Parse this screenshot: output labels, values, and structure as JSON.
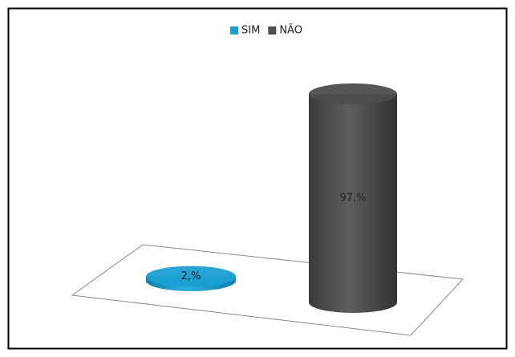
{
  "chart_data": {
    "type": "bar",
    "style": "cylinder-3d",
    "legend": "top",
    "categories": [
      null
    ],
    "series": [
      {
        "name": "SIM",
        "color": "#1b9fd3",
        "values": [
          2
        ],
        "value_labels": [
          "2,%"
        ]
      },
      {
        "name": "NÃO",
        "color": "#4d4d4d",
        "values": [
          97
        ],
        "value_labels": [
          "97,%"
        ]
      }
    ]
  }
}
